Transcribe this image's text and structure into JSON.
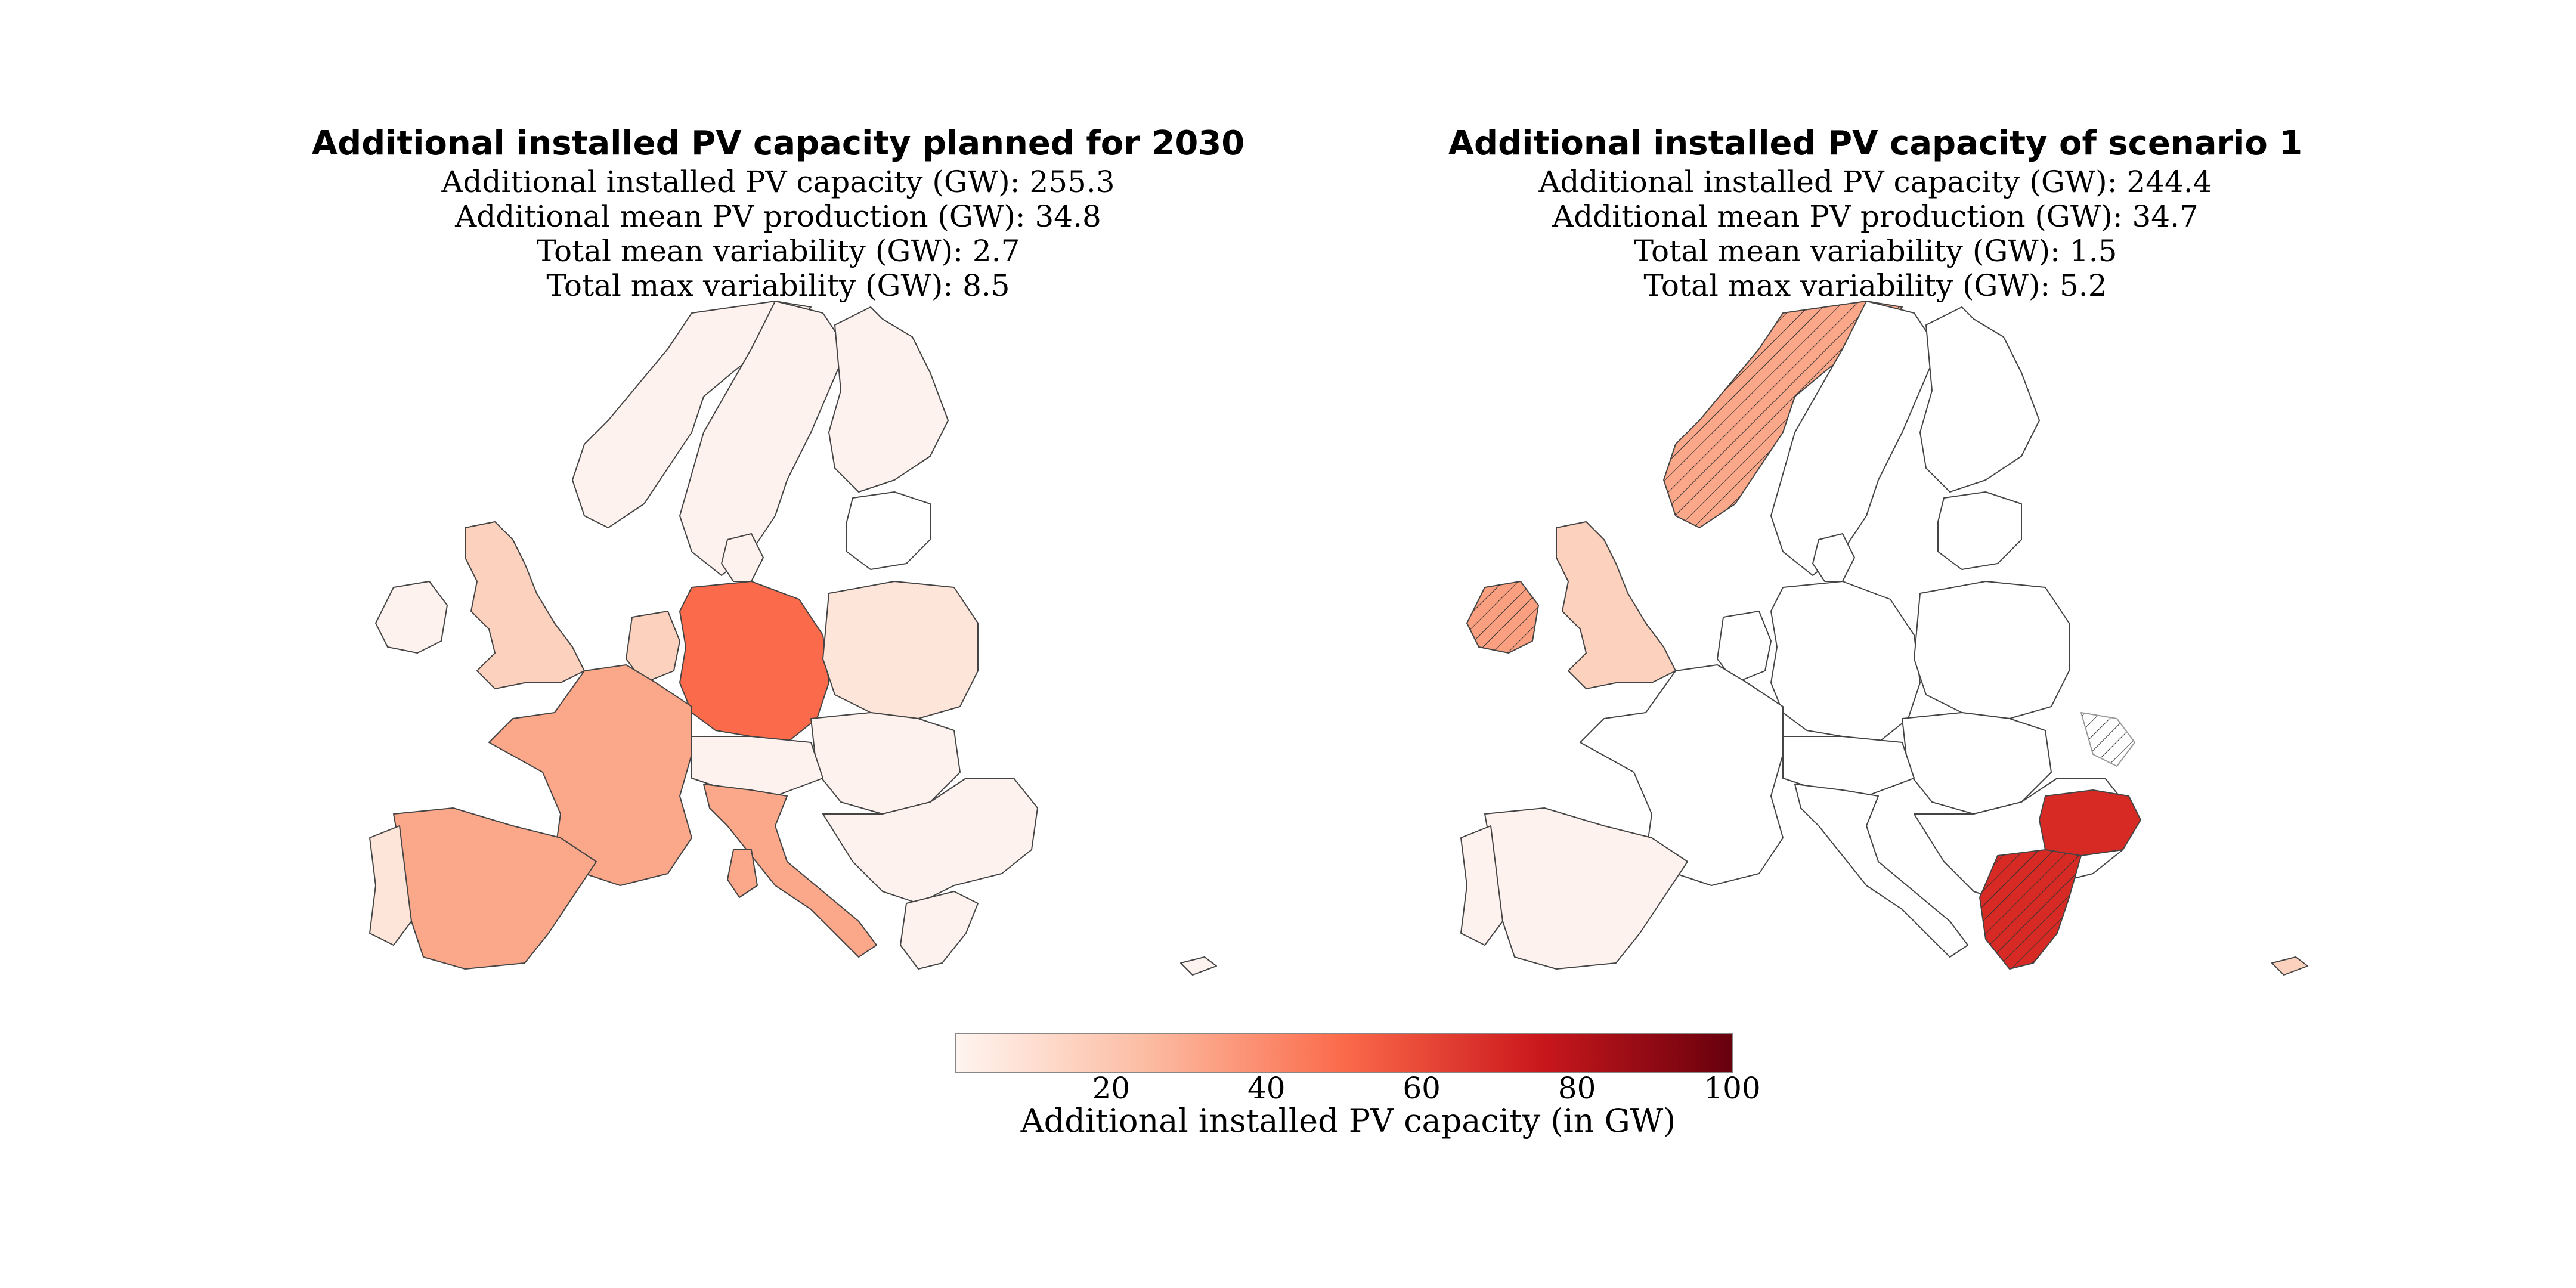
{
  "colors": {
    "very_light": "#fef2ee",
    "light": "#fcd1bd",
    "mid_light": "#fbb398",
    "medium": "#fa9f7f",
    "germany": "#fb6a4a",
    "strong": "#d82a24",
    "dark": "#67000d",
    "outline": "#444444"
  },
  "left_panel": {
    "title": "Additional installed PV capacity planned for 2030",
    "stats": [
      "Additional installed PV capacity (GW): 255.3",
      "Additional mean PV production (GW): 34.8",
      "Total mean variability (GW): 2.7",
      "Total max variability (GW): 8.5"
    ]
  },
  "right_panel": {
    "title": "Additional installed PV capacity of scenario 1",
    "stats": [
      "Additional installed PV capacity (GW): 244.4",
      "Additional mean PV production (GW): 34.7",
      "Total mean variability (GW): 1.5",
      "Total max variability (GW): 5.2"
    ]
  },
  "colorbar": {
    "min": 0,
    "max": 100,
    "ticks": [
      "20",
      "40",
      "60",
      "80",
      "100"
    ],
    "tick_values": [
      20,
      40,
      60,
      80,
      100
    ],
    "label": "Additional installed PV capacity (in GW)",
    "colormap": "Reds"
  }
}
